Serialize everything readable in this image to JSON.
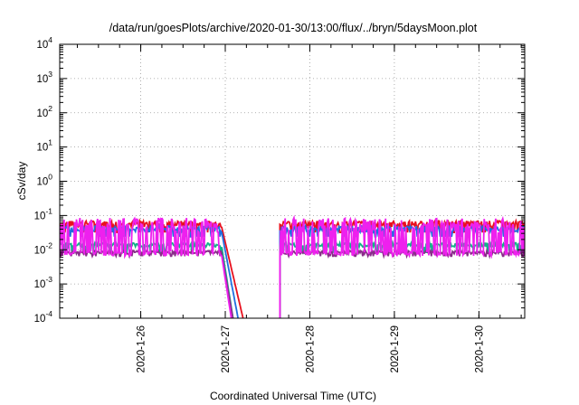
{
  "chart_data": {
    "type": "line",
    "title": "/data/run/goesPlots/archive/2020-01-30/13:00/flux/../bryn/5daysMoon.plot",
    "xlabel": "Coordinated Universal Time (UTC)",
    "ylabel": "cSv/day",
    "yscale": "log",
    "ylim": [
      0.0001,
      10000
    ],
    "y_tick_labels": [
      {
        "base": "10",
        "exp": "-4",
        "value": 0.0001
      },
      {
        "base": "10",
        "exp": "-3",
        "value": 0.001
      },
      {
        "base": "10",
        "exp": "-2",
        "value": 0.01
      },
      {
        "base": "10",
        "exp": "-1",
        "value": 0.1
      },
      {
        "base": "10",
        "exp": "0",
        "value": 1
      },
      {
        "base": "10",
        "exp": "1",
        "value": 10
      },
      {
        "base": "10",
        "exp": "2",
        "value": 100
      },
      {
        "base": "10",
        "exp": "3",
        "value": 1000
      },
      {
        "base": "10",
        "exp": "4",
        "value": 10000
      }
    ],
    "xlim": [
      "2020-01-25T01:00",
      "2020-01-30T13:00"
    ],
    "x_tick_labels": [
      "2020-1-26",
      "2020-1-27",
      "2020-1-28",
      "2020-1-29",
      "2020-1-30"
    ],
    "grid": true,
    "series": [
      {
        "color": "#e8101e",
        "band": [
          0.045,
          0.07
        ],
        "dip": 0.032,
        "decay_to": "2020-01-27T05:30",
        "resume": "2020-01-27T15:30"
      },
      {
        "color": "#1f6fe0",
        "band": [
          0.032,
          0.05
        ],
        "dip": 0.024,
        "decay_to": "2020-01-27T04:00",
        "resume": "2020-01-27T15:30"
      },
      {
        "color": "#12b28a",
        "band": [
          0.012,
          0.016
        ],
        "dip": 0.008,
        "decay_to": "2020-01-27T02:30",
        "resume": "2020-01-27T15:30"
      },
      {
        "color": "#8a2c8a",
        "band": [
          0.0075,
          0.0095
        ],
        "dip": 0.0065,
        "decay_to": "2020-01-27T02:30",
        "resume": "2020-01-27T15:30"
      },
      {
        "color": "#ee20ee",
        "band": [
          0.0065,
          0.085
        ],
        "dip": 0.0065,
        "decay_to": "2020-01-27T02:00",
        "resume": "2020-01-27T15:30"
      }
    ],
    "gap": [
      "2020-01-27T05:30",
      "2020-01-27T15:30"
    ]
  }
}
